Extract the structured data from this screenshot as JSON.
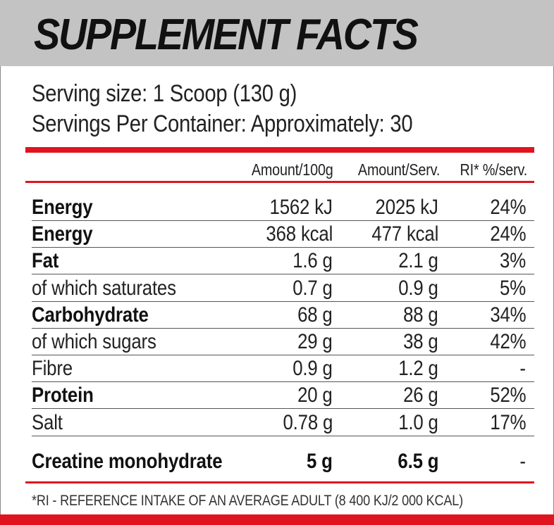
{
  "header": {
    "title": "SUPPLEMENT FACTS",
    "background": "#c3c3c3"
  },
  "serving": {
    "size": "Serving size: 1 Scoop (130 g)",
    "per_container": "Servings Per Container: Approximately: 30"
  },
  "table": {
    "columns": [
      "Amount/100g",
      "Amount/Serv.",
      "RI* %/serv."
    ],
    "rows": [
      {
        "name": "Energy",
        "per100g": "1562 kJ",
        "perServ": "2025 kJ",
        "ri": "24%",
        "bold": true
      },
      {
        "name": "Energy",
        "per100g": "368 kcal",
        "perServ": "477 kcal",
        "ri": "24%",
        "bold": true
      },
      {
        "name": "Fat",
        "per100g": "1.6 g",
        "perServ": "2.1 g",
        "ri": "3%",
        "bold": true
      },
      {
        "name": "of which saturates",
        "per100g": "0.7 g",
        "perServ": "0.9 g",
        "ri": "5%",
        "bold": false
      },
      {
        "name": "Carbohydrate",
        "per100g": "68 g",
        "perServ": "88 g",
        "ri": "34%",
        "bold": true
      },
      {
        "name": "of which sugars",
        "per100g": "29 g",
        "perServ": "38 g",
        "ri": "42%",
        "bold": false
      },
      {
        "name": "Fibre",
        "per100g": "0.9 g",
        "perServ": "1.2 g",
        "ri": "-",
        "bold": false
      },
      {
        "name": "Protein",
        "per100g": "20 g",
        "perServ": "26 g",
        "ri": "52%",
        "bold": true
      },
      {
        "name": "Salt",
        "per100g": "0.78 g",
        "perServ": "1.0 g",
        "ri": "17%",
        "bold": false
      }
    ],
    "extra_row": {
      "name": "Creatine monohydrate",
      "per100g": "5 g",
      "perServ": "6.5 g",
      "ri": "-"
    }
  },
  "footnote": "*RI - REFERENCE INTAKE OF AN AVERAGE ADULT (8 400 KJ/2 000 KCAL)",
  "colors": {
    "accent": "#e0141e",
    "header_bg": "#c3c3c3",
    "text": "#222222"
  }
}
